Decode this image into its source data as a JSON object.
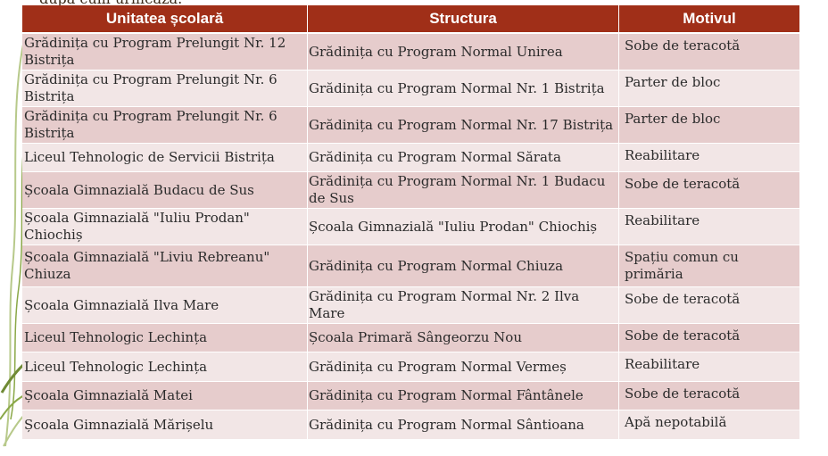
{
  "clipped_heading": "după cum urmează:",
  "table": {
    "headers": [
      "Unitatea școlară",
      "Structura",
      "Motivul"
    ],
    "rows": [
      [
        "Grădinița cu Program Prelungit Nr. 12 Bistrița",
        "Grădinița cu Program Normal Unirea",
        "Sobe de teracotă"
      ],
      [
        "Grădinița cu Program Prelungit Nr. 6 Bistrița",
        "Grădinița cu Program Normal Nr. 1 Bistrița",
        "Parter de bloc"
      ],
      [
        "Grădinița cu Program Prelungit Nr. 6 Bistrița",
        "Grădinița cu Program Normal Nr. 17 Bistrița",
        "Parter de bloc"
      ],
      [
        "Liceul Tehnologic de Servicii Bistrița",
        "Grădinița cu Program Normal Sărata",
        "Reabilitare"
      ],
      [
        "Școala Gimnazială Budacu de Sus",
        "Grădinița cu Program Normal Nr. 1 Budacu de Sus",
        "Sobe de teracotă"
      ],
      [
        "Școala Gimnazială \"Iuliu Prodan\" Chiochiș",
        "Școala Gimnazială \"Iuliu Prodan\" Chiochiș",
        "Reabilitare"
      ],
      [
        "Școala Gimnazială \"Liviu Rebreanu\" Chiuza",
        "Grădinița cu Program Normal Chiuza",
        "Spațiu comun cu primăria"
      ],
      [
        "Școala Gimnazială Ilva Mare",
        "Grădinița cu Program Normal Nr. 2 Ilva Mare",
        "Sobe de teracotă"
      ],
      [
        "Liceul Tehnologic Lechința",
        "Școala Primară Sângeorzu Nou",
        "Sobe de teracotă"
      ],
      [
        "Liceul Tehnologic Lechința",
        "Grădinița cu Program Normal Vermeș",
        "Reabilitare"
      ],
      [
        "Școala Gimnazială Matei",
        "Grădinița cu Program Normal Fântânele",
        "Sobe de teracotă"
      ],
      [
        "Școala Gimnazială Mărișelu",
        "Grădinița cu Program Normal Sântioana",
        "Apă nepotabilă"
      ]
    ]
  },
  "colors": {
    "header_bg": "#a02f18",
    "row_odd": "#e6cccc",
    "row_even": "#f2e6e6",
    "decor_green": "#8aa848"
  }
}
